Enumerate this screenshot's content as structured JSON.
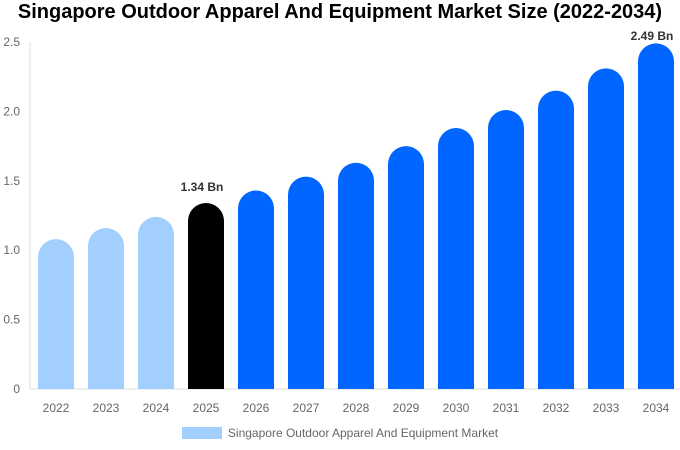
{
  "chart_data": {
    "type": "bar",
    "title": "Singapore Outdoor Apparel And Equipment Market Size (2022-2034)",
    "categories": [
      "2022",
      "2023",
      "2024",
      "2025",
      "2026",
      "2027",
      "2028",
      "2029",
      "2030",
      "2031",
      "2032",
      "2033",
      "2034"
    ],
    "series": [
      {
        "name": "Singapore Outdoor Apparel And Equipment Market",
        "values": [
          1.08,
          1.16,
          1.24,
          1.34,
          1.43,
          1.53,
          1.63,
          1.75,
          1.88,
          2.01,
          2.15,
          2.31,
          2.49
        ]
      }
    ],
    "data_labels": {
      "3": "1.34 Bn",
      "12": "2.49 Bn"
    },
    "ylim": [
      0,
      2.5
    ],
    "yticks": [
      "0",
      "0.5",
      "1.0",
      "1.5",
      "2.0",
      "2.5"
    ],
    "grid": false,
    "legend_position": "bottom",
    "colors": {
      "historical": "#a3cfff",
      "current": "#000000",
      "forecast": "#0066ff"
    }
  }
}
